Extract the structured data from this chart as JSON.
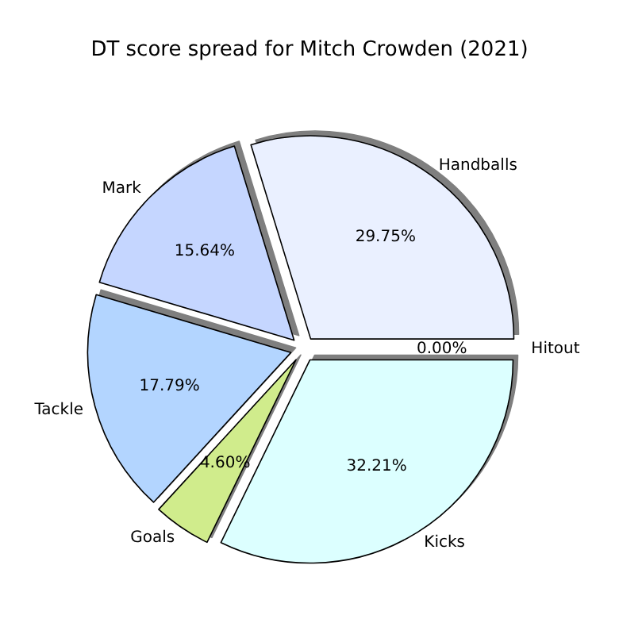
{
  "chart_data": {
    "type": "pie",
    "title": "DT score spread for Mitch Crowden (2021)",
    "categories": [
      "Handballs",
      "Mark",
      "Tackle",
      "Goals",
      "Kicks",
      "Hitout"
    ],
    "values": [
      29.75,
      15.64,
      17.79,
      4.6,
      32.21,
      0
    ],
    "colors": [
      "#eaf0ff",
      "#c5d6ff",
      "#b3d5ff",
      "#d0ec8c",
      "#dcffff",
      "#e8e8ff"
    ],
    "value_labels": [
      "29.75%",
      "15.64%",
      "17.79%",
      "4.60%",
      "32.21%",
      "0.00%"
    ],
    "legend": false
  }
}
